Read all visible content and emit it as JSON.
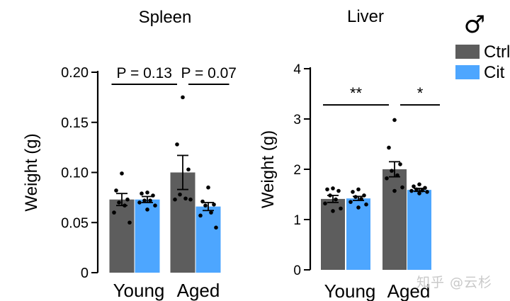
{
  "figure": {
    "sex_symbol": "♂",
    "watermark": "知乎 @云杉"
  },
  "colors": {
    "ctrl": "#5d5d5d",
    "cit": "#4da6ff",
    "axis": "#000000",
    "dot": "#000000"
  },
  "legend": {
    "placement": "top-right",
    "entries": [
      {
        "label": "Ctrl",
        "color": "#5d5d5d"
      },
      {
        "label": "Cit",
        "color": "#4da6ff"
      }
    ]
  },
  "chart_data": [
    {
      "type": "bar",
      "title": "Spleen",
      "ylabel": "Weight (g)",
      "categories": [
        "Young",
        "Aged"
      ],
      "ylim": [
        0,
        0.2
      ],
      "yticks": [
        0,
        0.05,
        0.1,
        0.15,
        0.2
      ],
      "ytick_labels": [
        "0",
        "0.05",
        "0.10",
        "0.15",
        "0.20"
      ],
      "series": [
        {
          "name": "Ctrl",
          "values": [
            0.073,
            0.1
          ],
          "sem": [
            0.006,
            0.017
          ],
          "points": [
            [
              0.099,
              0.082,
              0.073,
              0.07,
              0.067,
              0.06,
              0.05
            ],
            [
              0.175,
              0.128,
              0.103,
              0.078,
              0.074,
              0.073,
              0.073
            ]
          ]
        },
        {
          "name": "Cit",
          "values": [
            0.073,
            0.066
          ],
          "sem": [
            0.003,
            0.004
          ],
          "points": [
            [
              0.08,
              0.079,
              0.077,
              0.072,
              0.072,
              0.07,
              0.067,
              0.063
            ],
            [
              0.085,
              0.071,
              0.068,
              0.067,
              0.06,
              0.057,
              0.045
            ]
          ]
        }
      ],
      "annotations": [
        {
          "text": "P = 0.13",
          "from": 0,
          "to": 2,
          "y": 0.188
        },
        {
          "text": "P = 0.07",
          "from": 2,
          "to": 3,
          "y": 0.188
        }
      ]
    },
    {
      "type": "bar",
      "title": "Liver",
      "ylabel": "Weight (g)",
      "categories": [
        "Young",
        "Aged"
      ],
      "ylim": [
        0,
        4
      ],
      "yticks": [
        0,
        1,
        2,
        3,
        4
      ],
      "ytick_labels": [
        "0",
        "1",
        "2",
        "3",
        "4"
      ],
      "series": [
        {
          "name": "Ctrl",
          "values": [
            1.41,
            2.0
          ],
          "sem": [
            0.07,
            0.15
          ],
          "points": [
            [
              1.62,
              1.6,
              1.57,
              1.48,
              1.4,
              1.32,
              1.22,
              1.17
            ],
            [
              2.98,
              2.43,
              2.1,
              1.97,
              1.88,
              1.82,
              1.64,
              1.57
            ]
          ]
        },
        {
          "name": "Cit",
          "values": [
            1.42,
            1.59
          ],
          "sem": [
            0.04,
            0.03
          ],
          "points": [
            [
              1.6,
              1.55,
              1.48,
              1.45,
              1.41,
              1.35,
              1.3,
              1.24
            ],
            [
              1.7,
              1.66,
              1.63,
              1.6,
              1.58,
              1.57,
              1.55,
              1.52
            ]
          ]
        }
      ],
      "annotations": [
        {
          "text": "**",
          "from": 0,
          "to": 2,
          "y": 3.28
        },
        {
          "text": "*",
          "from": 2,
          "to": 3,
          "y": 3.28
        }
      ]
    }
  ]
}
